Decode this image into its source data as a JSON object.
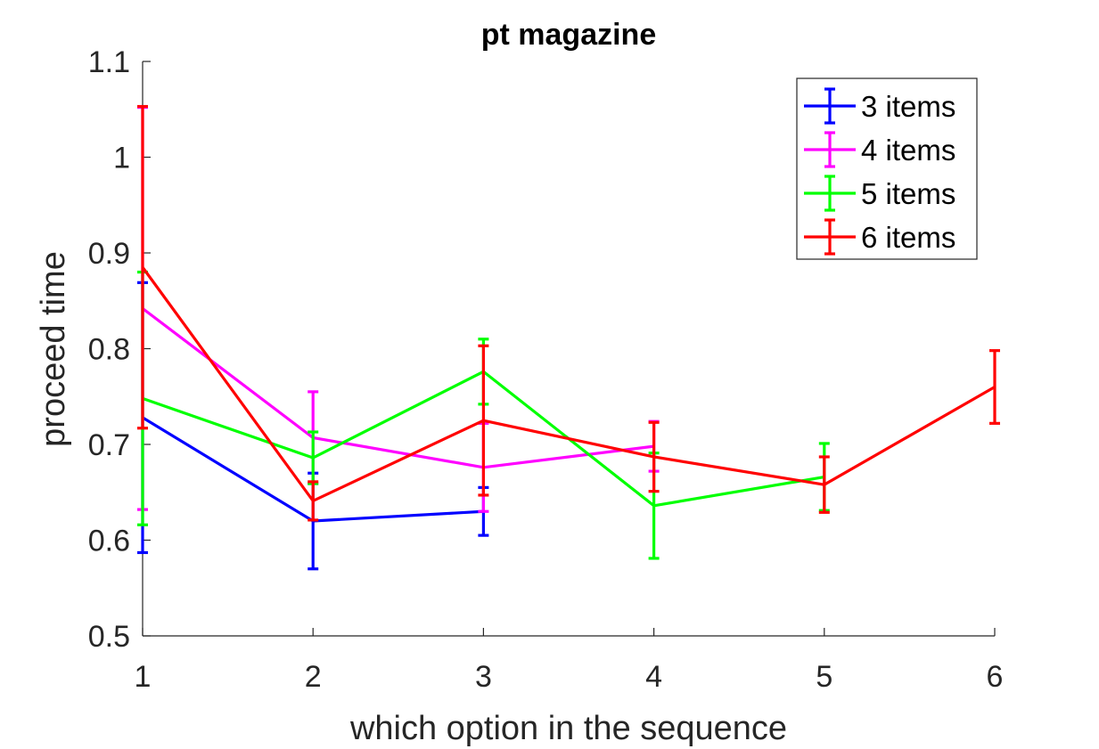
{
  "chart_data": {
    "type": "line",
    "title": "pt magazine",
    "xlabel": "which option in the sequence",
    "ylabel": "proceed time",
    "xlim": [
      1,
      6
    ],
    "ylim": [
      0.5,
      1.1
    ],
    "xticks": [
      "1",
      "2",
      "3",
      "4",
      "5",
      "6"
    ],
    "yticks": [
      "0.5",
      "0.6",
      "0.7",
      "0.8",
      "0.9",
      "1",
      "1.1"
    ],
    "legend_position": "top-right",
    "error_bars": true,
    "series": [
      {
        "name": "3 items",
        "color": "#0000ff",
        "x": [
          1,
          2,
          3
        ],
        "values": [
          0.728,
          0.62,
          0.63
        ],
        "errors": [
          0.141,
          0.05,
          0.025
        ]
      },
      {
        "name": "4 items",
        "color": "#ff00ff",
        "x": [
          1,
          2,
          3,
          4
        ],
        "values": [
          0.842,
          0.707,
          0.676,
          0.698
        ],
        "errors": [
          0.21,
          0.048,
          0.046,
          0.026
        ]
      },
      {
        "name": "5 items",
        "color": "#00ff00",
        "x": [
          1,
          2,
          3,
          4,
          5
        ],
        "values": [
          0.748,
          0.686,
          0.776,
          0.636,
          0.666
        ],
        "errors": [
          0.132,
          0.027,
          0.034,
          0.055,
          0.035
        ]
      },
      {
        "name": "6 items",
        "color": "#ff0000",
        "x": [
          1,
          2,
          3,
          4,
          5,
          6
        ],
        "values": [
          0.885,
          0.641,
          0.725,
          0.687,
          0.658,
          0.76
        ],
        "errors": [
          0.168,
          0.02,
          0.078,
          0.036,
          0.029,
          0.038
        ]
      }
    ]
  }
}
